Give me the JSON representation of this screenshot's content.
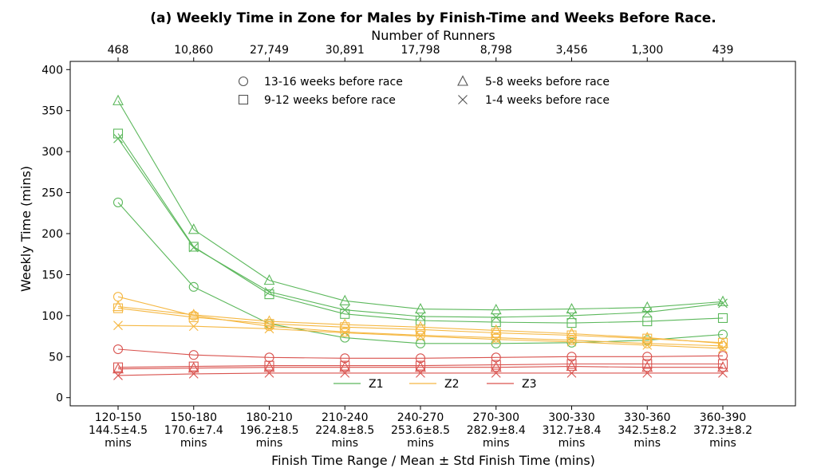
{
  "chart_data": {
    "type": "line",
    "title": "(a) Weekly Time in Zone for Males by Finish-Time and Weeks Before Race.",
    "xlabel": "Finish Time Range / Mean ± Std Finish Time (mins)",
    "ylabel": "Weekly Time (mins)",
    "top_xlabel": "Number of Runners",
    "ylim": [
      -10,
      410
    ],
    "yticks": [
      0,
      50,
      100,
      150,
      200,
      250,
      300,
      350,
      400
    ],
    "categories": [
      [
        "120-150",
        "144.5±4.5",
        "mins"
      ],
      [
        "150-180",
        "170.6±7.4",
        "mins"
      ],
      [
        "180-210",
        "196.2±8.5",
        "mins"
      ],
      [
        "210-240",
        "224.8±8.5",
        "mins"
      ],
      [
        "240-270",
        "253.6±8.5",
        "mins"
      ],
      [
        "270-300",
        "282.9±8.4",
        "mins"
      ],
      [
        "300-330",
        "312.7±8.4",
        "mins"
      ],
      [
        "330-360",
        "342.5±8.2",
        "mins"
      ],
      [
        "360-390",
        "372.3±8.2",
        "mins"
      ]
    ],
    "top_ticks": [
      "468",
      "10,860",
      "27,749",
      "30,891",
      "17,798",
      "8,798",
      "3,456",
      "1,300",
      "439"
    ],
    "marker_legend": [
      {
        "marker": "circle",
        "label": "13-16 weeks before race"
      },
      {
        "marker": "square",
        "label": "9-12 weeks before race"
      },
      {
        "marker": "triangle",
        "label": "5-8 weeks before race"
      },
      {
        "marker": "x",
        "label": "1-4 weeks before race"
      }
    ],
    "zone_legend": [
      {
        "zone": "Z1",
        "label": "Z1",
        "color": "#5cb85c"
      },
      {
        "zone": "Z2",
        "label": "Z2",
        "color": "#f5b843"
      },
      {
        "zone": "Z3",
        "label": "Z3",
        "color": "#d9534f"
      }
    ],
    "series": [
      {
        "zone": "Z1",
        "marker": "circle",
        "values": [
          238,
          135,
          90,
          73,
          66,
          66,
          67,
          70,
          77
        ]
      },
      {
        "zone": "Z1",
        "marker": "square",
        "values": [
          322,
          184,
          126,
          102,
          94,
          92,
          91,
          93,
          97
        ]
      },
      {
        "zone": "Z1",
        "marker": "triangle",
        "values": [
          362,
          205,
          143,
          118,
          108,
          107,
          108,
          110,
          117
        ]
      },
      {
        "zone": "Z1",
        "marker": "x",
        "values": [
          316,
          183,
          129,
          107,
          99,
          98,
          100,
          104,
          115
        ]
      },
      {
        "zone": "Z2",
        "marker": "circle",
        "values": [
          123,
          100,
          87,
          80,
          76,
          73,
          70,
          66,
          63
        ]
      },
      {
        "zone": "Z2",
        "marker": "square",
        "values": [
          109,
          98,
          90,
          86,
          83,
          79,
          76,
          72,
          67
        ]
      },
      {
        "zone": "Z2",
        "marker": "triangle",
        "values": [
          111,
          101,
          93,
          89,
          86,
          82,
          78,
          73,
          66
        ]
      },
      {
        "zone": "Z2",
        "marker": "x",
        "values": [
          88,
          87,
          84,
          79,
          75,
          71,
          68,
          64,
          60
        ]
      },
      {
        "zone": "Z3",
        "marker": "circle",
        "values": [
          59,
          52,
          49,
          48,
          48,
          49,
          50,
          50,
          51
        ]
      },
      {
        "zone": "Z3",
        "marker": "square",
        "values": [
          37,
          38,
          39,
          39,
          39,
          40,
          41,
          41,
          41
        ]
      },
      {
        "zone": "Z3",
        "marker": "triangle",
        "values": [
          35,
          36,
          37,
          37,
          37,
          37,
          38,
          37,
          37
        ]
      },
      {
        "zone": "Z3",
        "marker": "x",
        "values": [
          27,
          29,
          30,
          30,
          30,
          30,
          30,
          30,
          30
        ]
      }
    ]
  }
}
